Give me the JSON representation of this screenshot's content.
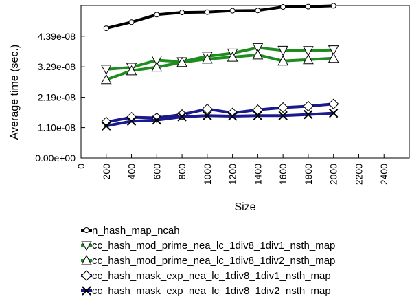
{
  "chart_data": {
    "type": "line",
    "title": "",
    "xlabel": "Size",
    "ylabel": "Average time (sec.)",
    "xlim": [
      0,
      2600
    ],
    "ylim": [
      0,
      5.5e-08
    ],
    "x_ticks": [
      0,
      200,
      400,
      600,
      800,
      1000,
      1200,
      1400,
      1600,
      1800,
      2000,
      2200,
      2400
    ],
    "x_tick_labels": [
      "0",
      "200",
      "400",
      "600",
      "800",
      "1000",
      "1200",
      "1400",
      "1600",
      "1800",
      "2000",
      "2200",
      "2400"
    ],
    "y_ticks": [
      0,
      1.1e-08,
      2.19e-08,
      3.29e-08,
      4.39e-08
    ],
    "y_tick_labels": [
      "0.00e+00",
      "1.10e-08",
      "2.19e-08",
      "3.29e-08",
      "4.39e-08"
    ],
    "grid": false,
    "legend_position": "below",
    "x": [
      200,
      400,
      600,
      800,
      1000,
      1200,
      1400,
      1600,
      1800,
      2000
    ],
    "series": [
      {
        "name": "n_hash_map_ncah",
        "color": "#000000",
        "marker": "circle",
        "values": [
          4.68e-08,
          4.9e-08,
          5.17e-08,
          5.25e-08,
          5.26e-08,
          5.31e-08,
          5.32e-08,
          5.45e-08,
          5.46e-08,
          5.49e-08
        ]
      },
      {
        "name": "cc_hash_mod_prime_nea_lc_1div8_1div1_nsth_map",
        "color": "#1f8c1f",
        "marker": "triangle-down",
        "values": [
          3.2e-08,
          3.27e-08,
          3.53e-08,
          3.47e-08,
          3.67e-08,
          3.78e-08,
          3.98e-08,
          3.88e-08,
          3.87e-08,
          3.9e-08
        ]
      },
      {
        "name": "cc_hash_mod_prime_nea_lc_1div8_1div2_nsth_map",
        "color": "#1f8c1f",
        "marker": "triangle-up",
        "values": [
          2.83e-08,
          3.15e-08,
          3.28e-08,
          3.45e-08,
          3.57e-08,
          3.64e-08,
          3.72e-08,
          3.5e-08,
          3.55e-08,
          3.6e-08
        ]
      },
      {
        "name": "cc_hash_mask_exp_nea_lc_1div8_1div1_nsth_map",
        "color": "#1a1a8c",
        "marker": "diamond",
        "values": [
          1.3e-08,
          1.47e-08,
          1.45e-08,
          1.57e-08,
          1.77e-08,
          1.63e-08,
          1.74e-08,
          1.82e-08,
          1.87e-08,
          1.95e-08
        ]
      },
      {
        "name": "cc_hash_mask_exp_nea_lc_1div8_1div2_nsth_map",
        "color": "#1a1a8c",
        "marker": "x",
        "values": [
          1.16e-08,
          1.33e-08,
          1.37e-08,
          1.49e-08,
          1.53e-08,
          1.51e-08,
          1.53e-08,
          1.53e-08,
          1.57e-08,
          1.62e-08
        ]
      }
    ]
  }
}
